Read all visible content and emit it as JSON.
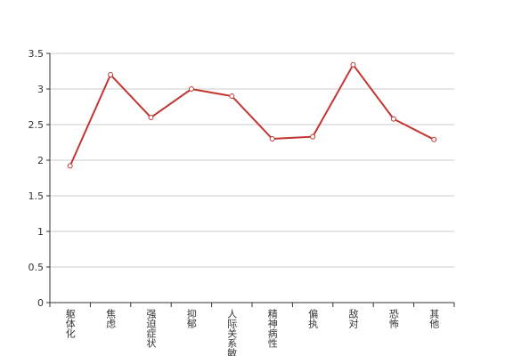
{
  "chart_data": {
    "type": "line",
    "categories": [
      "躯体化",
      "焦虑",
      "强迫症状",
      "抑郁",
      "人际关系敏感",
      "精神病性",
      "偏执",
      "敌对",
      "恐怖",
      "其他"
    ],
    "series": [
      {
        "name": "",
        "color": "#c23531",
        "values": [
          1.92,
          3.2,
          2.6,
          3.0,
          2.9,
          2.3,
          2.33,
          3.34,
          2.58,
          2.29
        ]
      }
    ],
    "ylim": [
      0,
      3.5
    ],
    "yticks": [
      0,
      0.5,
      1,
      1.5,
      2,
      2.5,
      3,
      3.5
    ],
    "grid": true
  }
}
